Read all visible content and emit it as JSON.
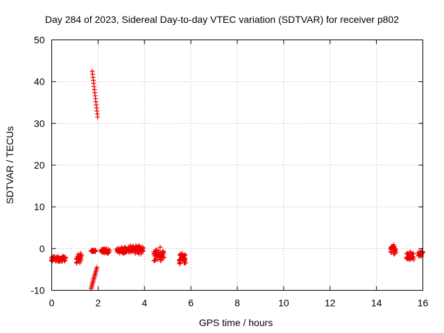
{
  "chart_data": {
    "type": "scatter",
    "title": "Day 284 of 2023, Sidereal Day-to-day VTEC variation (SDTVAR) for receiver p802",
    "xlabel": "GPS time / hours",
    "ylabel": "SDTVAR / TECUs",
    "xlim": [
      0,
      16
    ],
    "ylim": [
      -10,
      50
    ],
    "x_ticks": [
      "0",
      "2",
      "4",
      "6",
      "8",
      "10",
      "12",
      "14",
      "16"
    ],
    "y_ticks": [
      "-10",
      "0",
      "10",
      "20",
      "30",
      "40",
      "50"
    ],
    "grid": true,
    "marker": "plus",
    "marker_color": "#ee0000",
    "clusters": [
      {
        "x": [
          0.0,
          0.6
        ],
        "y": [
          -3.2,
          -1.8
        ]
      },
      {
        "x": [
          1.05,
          1.3
        ],
        "y": [
          -3.8,
          -1.0
        ]
      },
      {
        "x": [
          1.7,
          1.9
        ],
        "y": [
          -0.8,
          -0.3
        ]
      },
      {
        "x": [
          2.1,
          2.5
        ],
        "y": [
          -1.2,
          0.2
        ]
      },
      {
        "x": [
          2.8,
          3.3
        ],
        "y": [
          -1.2,
          0.4
        ]
      },
      {
        "x": [
          3.3,
          3.95
        ],
        "y": [
          -1.5,
          1.0
        ]
      },
      {
        "x": [
          4.4,
          4.85
        ],
        "y": [
          -3.2,
          0.5
        ]
      },
      {
        "x": [
          5.5,
          5.8
        ],
        "y": [
          -3.8,
          -1.0
        ]
      },
      {
        "x": [
          14.6,
          14.85
        ],
        "y": [
          -1.5,
          1.2
        ]
      },
      {
        "x": [
          15.3,
          15.6
        ],
        "y": [
          -3.0,
          -0.5
        ]
      },
      {
        "x": [
          15.8,
          16.0
        ],
        "y": [
          -2.5,
          -0.2
        ]
      }
    ],
    "tracks": [
      {
        "x": [
          1.75,
          1.98
        ],
        "y": [
          42.5,
          31.5
        ]
      },
      {
        "x": [
          1.7,
          1.95
        ],
        "y": [
          -9.6,
          -4.5
        ]
      }
    ]
  }
}
